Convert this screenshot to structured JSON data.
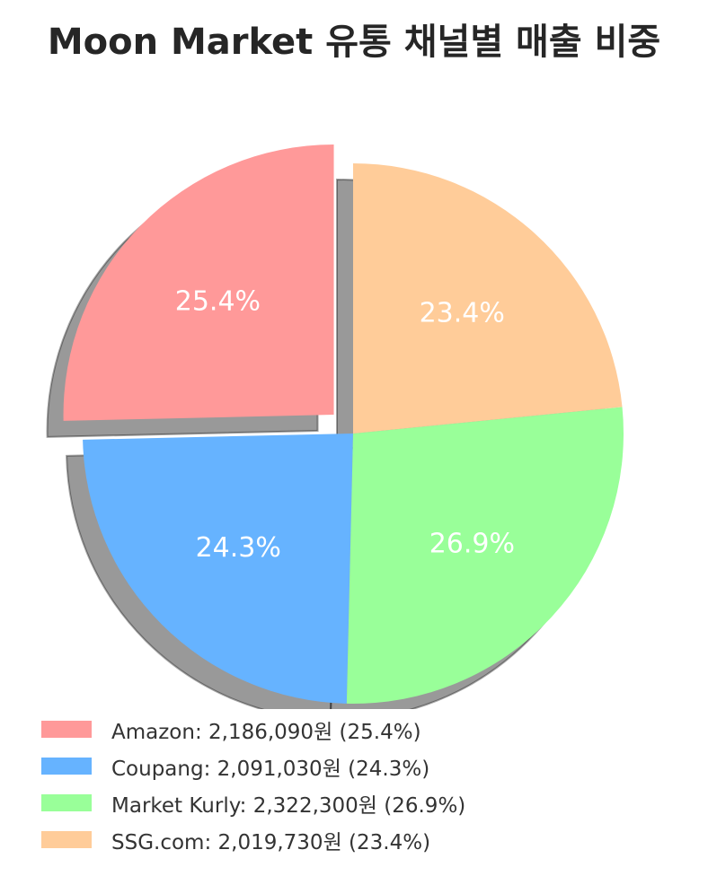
{
  "chart_data": {
    "type": "pie",
    "title": "Moon Market 유통 채널별 매출 비중",
    "slices": [
      {
        "name": "Amazon",
        "value": 2186090,
        "percent_label": "25.4%",
        "legend_label": "Amazon: 2,186,090원 (25.4%)",
        "color": "#ff9999",
        "exploded": true
      },
      {
        "name": "Coupang",
        "value": 2091030,
        "percent_label": "24.3%",
        "legend_label": "Coupang: 2,091,030원 (24.3%)",
        "color": "#66b3ff",
        "exploded": false
      },
      {
        "name": "Market Kurly",
        "value": 2322300,
        "percent_label": "26.9%",
        "legend_label": "Market Kurly: 2,322,300원 (26.9%)",
        "color": "#99ff99",
        "exploded": false
      },
      {
        "name": "SSG.com",
        "value": 2019730,
        "percent_label": "23.4%",
        "legend_label": "SSG.com: 2,019,730원 (23.4%)",
        "color": "#ffcc99",
        "exploded": false
      }
    ],
    "start_angle_deg": 90,
    "direction": "counterclockwise",
    "shadow": true,
    "legend_position": "bottom-left"
  }
}
